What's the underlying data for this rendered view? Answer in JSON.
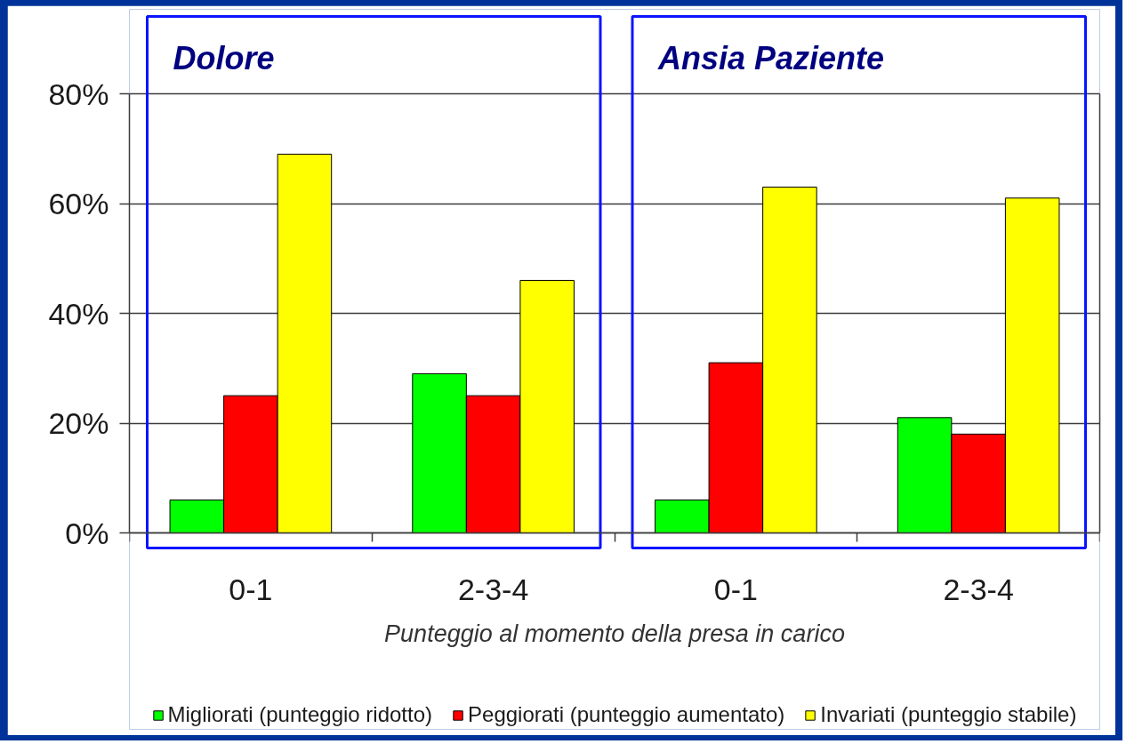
{
  "chart_data": {
    "type": "bar",
    "annotations": [
      "Dolore",
      "Ansia Paziente"
    ],
    "xlabel": "Punteggio al momento della presa in carico",
    "categories": [
      "0-1",
      "2-3-4",
      "0-1",
      "2-3-4"
    ],
    "series": [
      {
        "name": "Migliorati (punteggio ridotto)",
        "color": "#00ff00",
        "values": [
          6,
          29,
          6,
          21
        ]
      },
      {
        "name": "Peggiorati (punteggio aumentato)",
        "color": "#ff0000",
        "values": [
          25,
          25,
          31,
          18
        ]
      },
      {
        "name": "Invariati (punteggio stabile)",
        "color": "#ffff00",
        "values": [
          69,
          46,
          63,
          61
        ]
      }
    ],
    "ylim": [
      0,
      80
    ],
    "yticks": [
      {
        "value": 0,
        "label": "0%"
      },
      {
        "value": 20,
        "label": "20%"
      },
      {
        "value": 40,
        "label": "40%"
      },
      {
        "value": 60,
        "label": "60%"
      },
      {
        "value": 80,
        "label": "80%"
      }
    ],
    "grid": "y",
    "legend": "bottom"
  }
}
